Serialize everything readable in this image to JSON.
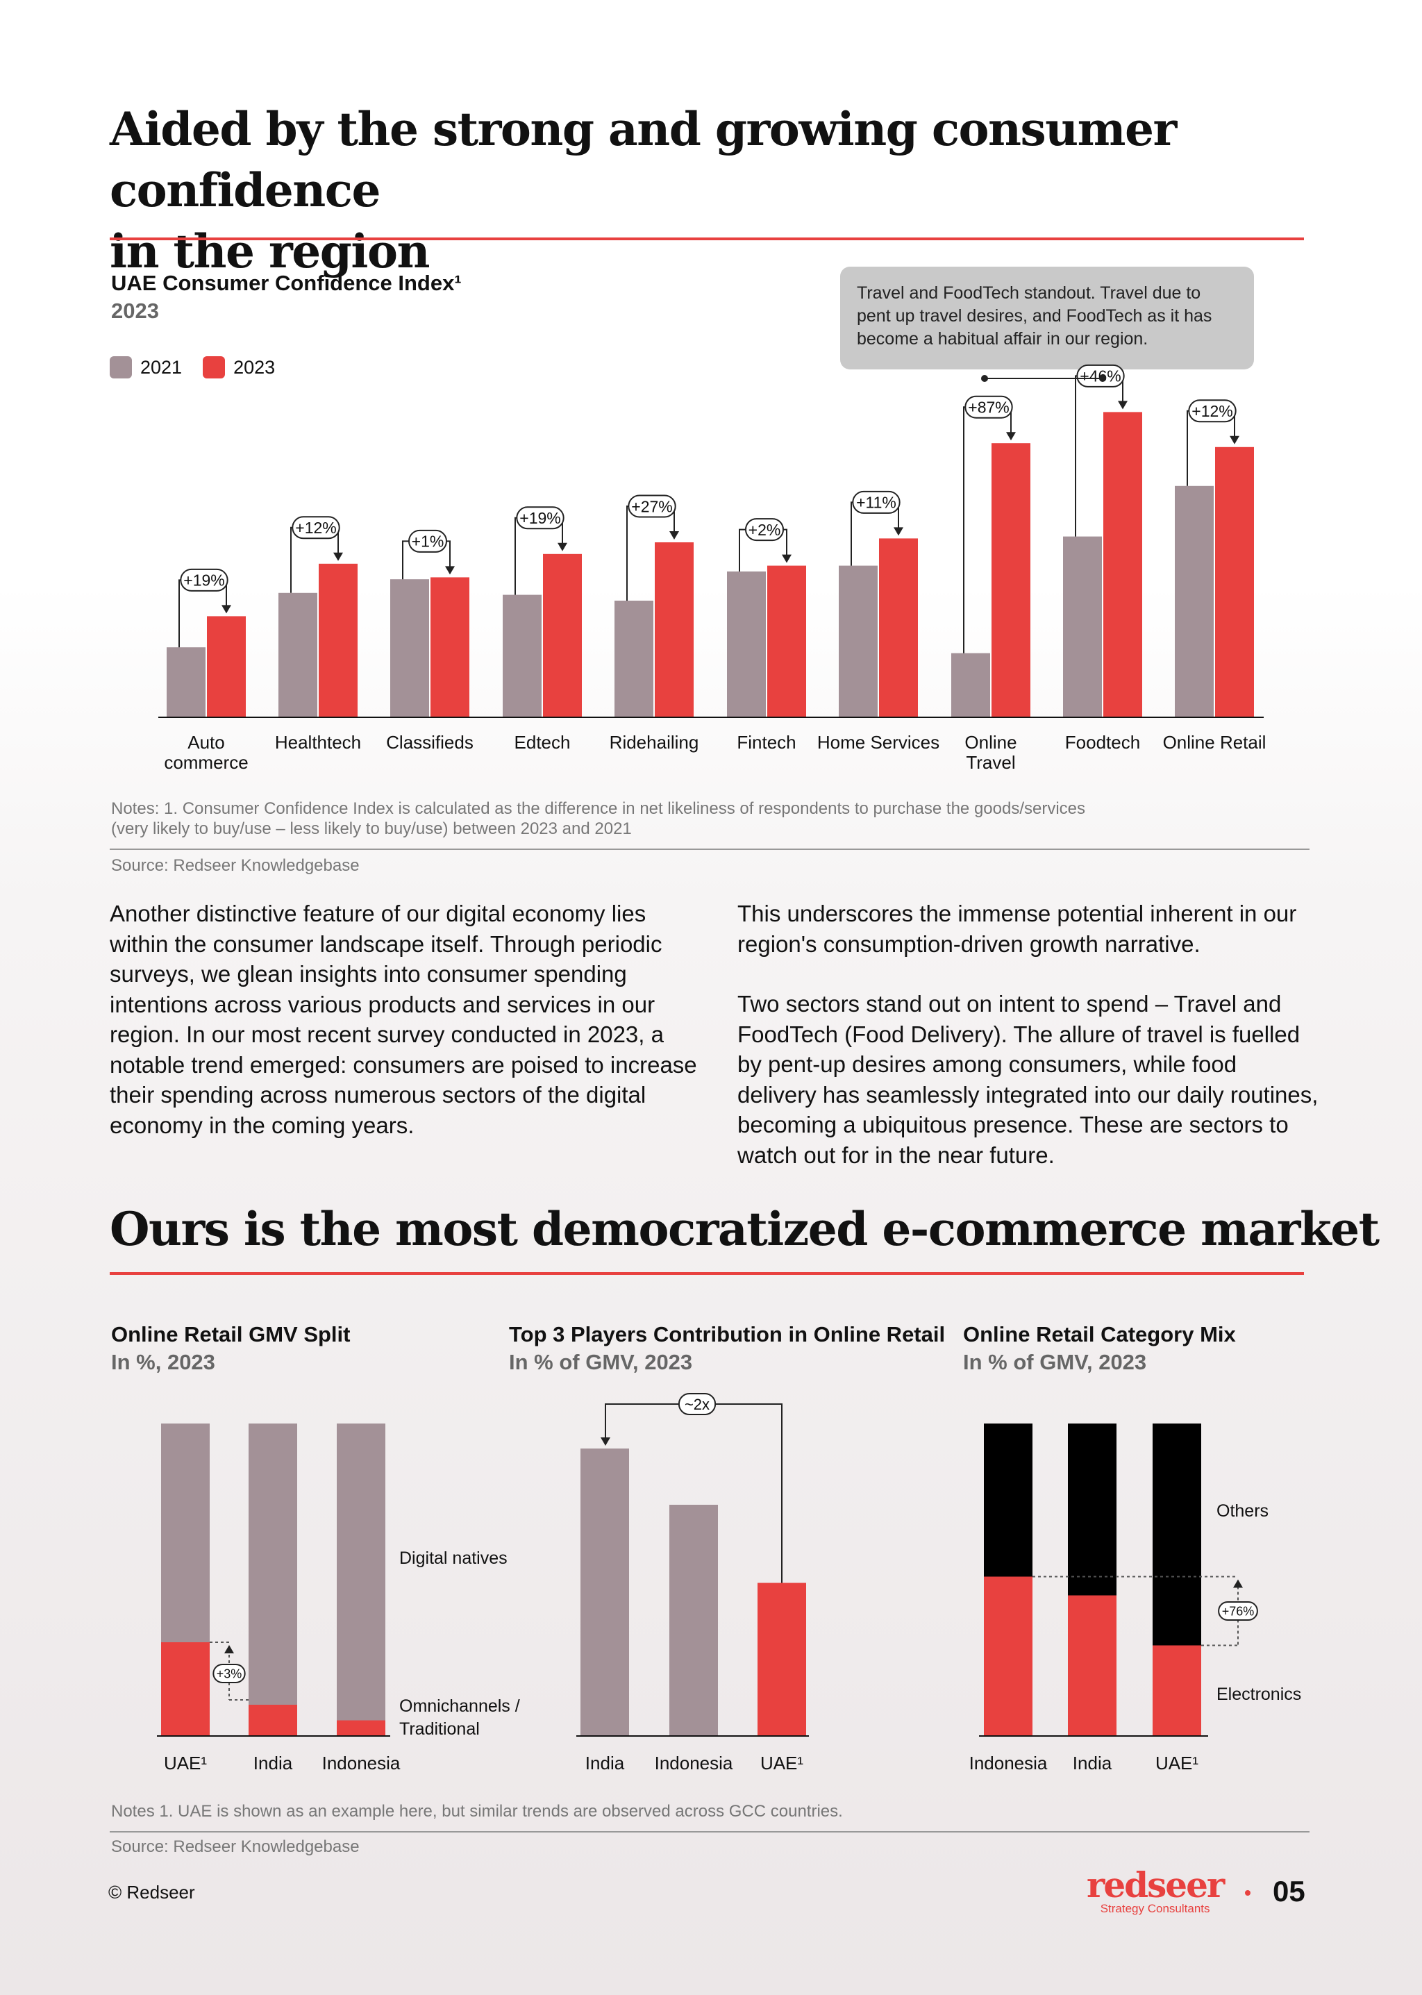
{
  "section1": {
    "heading_line1": "Aided by the strong and growing consumer confidence",
    "heading_line2": "in the region",
    "chart_title": "UAE Consumer Confidence Index¹",
    "chart_subtitle": "2023",
    "legend": [
      "2021",
      "2023"
    ],
    "callout": "Travel and FoodTech standout. Travel due to pent up travel desires, and FoodTech as it has become a habitual affair in our region.",
    "notes_line1": "Notes: 1. Consumer Confidence Index is calculated as the difference in net likeliness of respondents to purchase the goods/services",
    "notes_line2": "(very likely to buy/use – less likely to buy/use) between 2023 and 2021",
    "source": "Source: Redseer Knowledgebase"
  },
  "body": {
    "left": "Another distinctive feature of our digital economy lies within the consumer landscape itself. Through periodic surveys, we glean insights into consumer spending intentions across various products and services in our region. In our most recent survey conducted in 2023, a notable trend emerged: consumers are poised to increase their spending across numerous sectors of the digital economy in the coming years.",
    "right_p1": "This underscores the immense potential inherent in our region's consumption-driven growth narrative.",
    "right_p2": "Two sectors stand out on intent to spend – Travel and FoodTech (Food Delivery). The allure of travel is fuelled by pent-up desires among consumers, while food delivery has seamlessly integrated into our daily routines, becoming a ubiquitous presence. These are sectors to watch out for in the near future."
  },
  "section2": {
    "heading": "Ours is the most democratized e-commerce market",
    "notes": "Notes 1. UAE is shown as an example here, but similar trends are observed across GCC countries.",
    "source": "Source: Redseer Knowledgebase"
  },
  "footer": {
    "copyright": "© Redseer",
    "logo_word": "redseer",
    "logo_tag": "Strategy Consultants",
    "page": "05"
  },
  "colors": {
    "grey": "#a39197",
    "red": "#e8413f",
    "black": "#000000",
    "accent_rule": "#e8413f"
  },
  "chart_data": [
    {
      "type": "bar",
      "title": "UAE Consumer Confidence Index¹",
      "subtitle": "2023",
      "categories": [
        "Auto commerce",
        "Healthtech",
        "Classifieds",
        "Edtech",
        "Ridehailing",
        "Fintech",
        "Home Services",
        "Online Travel",
        "Foodtech",
        "Online Retail"
      ],
      "category_lines": [
        [
          "Auto",
          "commerce"
        ],
        [
          "Healthtech"
        ],
        [
          "Classifieds"
        ],
        [
          "Edtech"
        ],
        [
          "Ridehailing"
        ],
        [
          "Fintech"
        ],
        [
          "Home Services"
        ],
        [
          "Online",
          "Travel"
        ],
        [
          "Foodtech"
        ],
        [
          "Online Retail"
        ]
      ],
      "series": [
        {
          "name": "2021",
          "color": "#a39197",
          "values": [
            18,
            32,
            35.5,
            31.5,
            30,
            37.5,
            39,
            16.5,
            46.5,
            59.5
          ]
        },
        {
          "name": "2023",
          "color": "#e8413f",
          "values": [
            26,
            39.5,
            36,
            42,
            45,
            39,
            46,
            70.5,
            78.5,
            69.5
          ]
        }
      ],
      "growth_labels": [
        "+19%",
        "+12%",
        "+1%",
        "+19%",
        "+27%",
        "+2%",
        "+11%",
        "+87%",
        "+46%",
        "+12%"
      ],
      "ylim": [
        0,
        80
      ],
      "grid": false,
      "legend_position": "top-left"
    },
    {
      "type": "bar",
      "stacked": true,
      "title": "Online Retail GMV Split",
      "subtitle": "In %, 2023",
      "categories": [
        "UAE¹",
        "India",
        "Indonesia"
      ],
      "series": [
        {
          "name": "Omnichannels / Traditional",
          "color": "#e8413f",
          "values": [
            30,
            10,
            5
          ]
        },
        {
          "name": "Digital natives",
          "color": "#a39197",
          "values": [
            70,
            90,
            95
          ]
        }
      ],
      "series_label_lines": [
        [
          "Omnichannels /",
          "Traditional"
        ],
        [
          "Digital natives"
        ]
      ],
      "annotation": "+3%",
      "ylim": [
        0,
        100
      ]
    },
    {
      "type": "bar",
      "title": "Top 3 Players Contribution in Online Retail",
      "subtitle": "In % of GMV, 2023",
      "categories": [
        "India",
        "Indonesia",
        "UAE¹"
      ],
      "colors": [
        "#a39197",
        "#a39197",
        "#e8413f"
      ],
      "values": [
        92,
        74,
        49
      ],
      "annotation": "~2x",
      "ylim": [
        0,
        100
      ]
    },
    {
      "type": "bar",
      "stacked": true,
      "title": "Online Retail Category Mix",
      "subtitle": "In % of GMV, 2023",
      "categories": [
        "Indonesia",
        "India",
        "UAE¹"
      ],
      "series": [
        {
          "name": "Electronics",
          "color": "#e8413f",
          "values": [
            51,
            45,
            29
          ]
        },
        {
          "name": "Others",
          "color": "#000000",
          "values": [
            49,
            55,
            71
          ]
        }
      ],
      "annotation": "+76%",
      "ylim": [
        0,
        100
      ]
    }
  ]
}
